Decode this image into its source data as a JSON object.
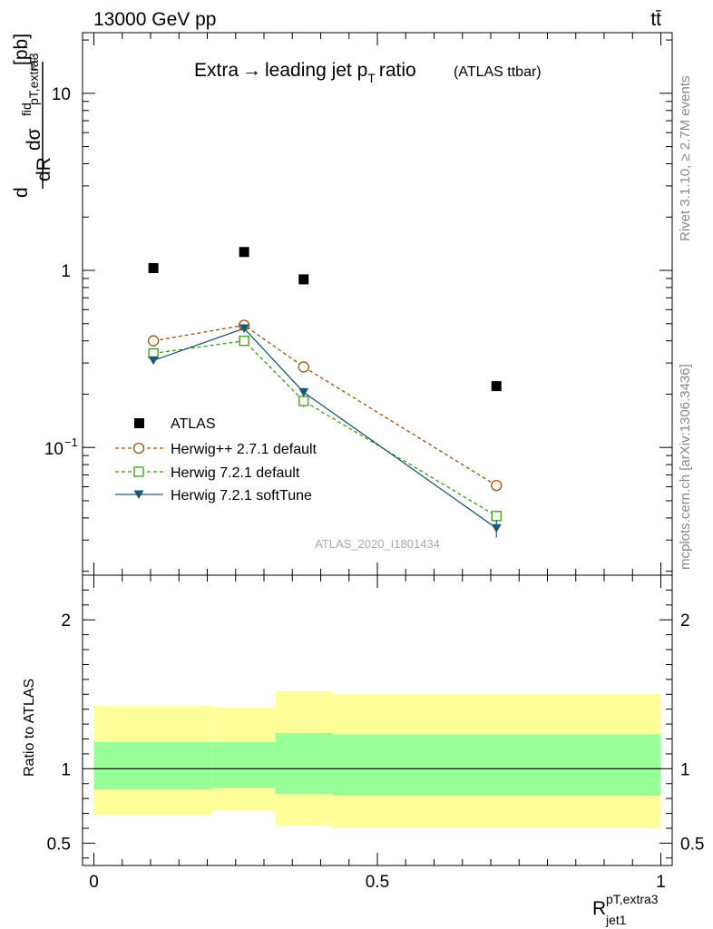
{
  "header": {
    "left": "13000 GeV pp",
    "right": "tt̄"
  },
  "side": {
    "rivet": "Rivet 3.1.10, ≥ 2.7M events",
    "mcplots": "mcplots.cern.ch [arXiv:1306.3436]"
  },
  "chart_data": [
    {
      "type": "scatter",
      "title": "Extra → leading jet p_T ratio",
      "title_parts": {
        "main": "Extra",
        "arrow": "→",
        "rest": "leading jet p",
        "sub": "T",
        "tail": "ratio",
        "note": "(ATLAS ttbar)"
      },
      "watermark": "ATLAS_2020_I1801434",
      "ylabel": "dσ^fid / dR^{pT,extra3}_{jet1} [pb]",
      "ylabel_parts": {
        "d1": "d",
        "num": "dσ",
        "sup": "fid",
        "sub": "pT,extra3",
        "subsub": "jet1",
        "den": "dR",
        "unit": "[pb]"
      },
      "yscale": "log",
      "ylim": [
        0.019,
        22
      ],
      "xlim": [
        -0.02,
        1.02
      ],
      "yticks": [
        {
          "v": 10,
          "label": "10"
        },
        {
          "v": 1,
          "label": "1"
        },
        {
          "v": 0.1,
          "label": "10",
          "exp": "−1"
        }
      ],
      "legend_position": "lower-left",
      "series": [
        {
          "name": "ATLAS",
          "marker": "square-filled",
          "color": "#000000",
          "x": [
            0.105,
            0.265,
            0.37,
            0.71
          ],
          "y": [
            1.03,
            1.27,
            0.89,
            0.222
          ]
        },
        {
          "name": "Herwig++ 2.7.1 default",
          "marker": "circle-open",
          "line": "dashed",
          "color": "#a0520f",
          "x": [
            0.105,
            0.265,
            0.37,
            0.71
          ],
          "y": [
            0.4,
            0.49,
            0.285,
            0.061
          ],
          "yerr": [
            0.01,
            0.012,
            0.018,
            0.003
          ]
        },
        {
          "name": "Herwig 7.2.1 default",
          "marker": "square-open",
          "line": "dashed",
          "color": "#3c9a16",
          "x": [
            0.105,
            0.265,
            0.37,
            0.71
          ],
          "y": [
            0.34,
            0.4,
            0.183,
            0.041
          ],
          "yerr": [
            0.008,
            0.01,
            0.014,
            0.003
          ]
        },
        {
          "name": "Herwig 7.2.1 softTune",
          "marker": "triangle-down-filled",
          "line": "solid",
          "color": "#1d5a6e",
          "x": [
            0.105,
            0.265,
            0.37,
            0.71
          ],
          "y": [
            0.31,
            0.47,
            0.205,
            0.035
          ],
          "yerr": [
            0.008,
            0.012,
            0.012,
            0.004
          ]
        }
      ]
    },
    {
      "type": "area",
      "ylabel": "Ratio to ATLAS",
      "xlabel": "R^{pT,extra3}_{jet1}",
      "xlabel_parts": {
        "base": "R",
        "sup": "pT,extra3",
        "sub": "jet1"
      },
      "xlim": [
        -0.02,
        1.02
      ],
      "ylim": [
        0.35,
        2.3
      ],
      "yticks": [
        {
          "v": 2,
          "label": "2"
        },
        {
          "v": 1,
          "label": "1"
        },
        {
          "v": 0.5,
          "label": "0.5"
        }
      ],
      "xticks": [
        {
          "v": 0,
          "label": "0"
        },
        {
          "v": 0.5,
          "label": "0.5"
        },
        {
          "v": 1,
          "label": "1"
        }
      ],
      "reference_line": 1,
      "band_colors": {
        "outer": "#ffff99",
        "inner": "#99ff99"
      },
      "bins": [
        {
          "lo": 0.0,
          "hi": 0.21,
          "outer": [
            0.69,
            1.42
          ],
          "inner": [
            0.86,
            1.18
          ]
        },
        {
          "lo": 0.21,
          "hi": 0.32,
          "outer": [
            0.72,
            1.41
          ],
          "inner": [
            0.87,
            1.18
          ]
        },
        {
          "lo": 0.32,
          "hi": 0.42,
          "outer": [
            0.62,
            1.52
          ],
          "inner": [
            0.83,
            1.24
          ]
        },
        {
          "lo": 0.42,
          "hi": 1.0,
          "outer": [
            0.6,
            1.5
          ],
          "inner": [
            0.82,
            1.23
          ]
        }
      ]
    }
  ]
}
